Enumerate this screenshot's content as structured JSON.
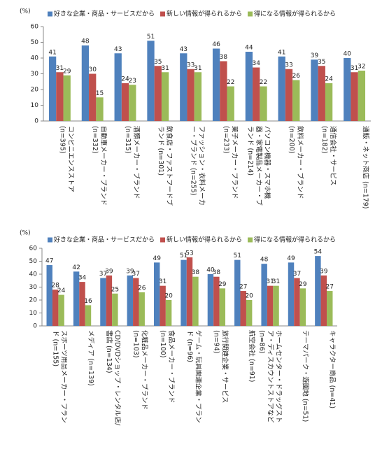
{
  "chart_data": [
    {
      "type": "bar",
      "y_label": "(%)",
      "categories": [
        "コンビニエンスストア (n=395)",
        "自動車メーカー・ブランド (n=332)",
        "酒類メーカー・ブランド (n=315)",
        "飲食店・ファストフードブランド (n=301)",
        "ファッション・衣料メーカー・ブランド (n=255)",
        "菓子メーカー・ブランド (n=233)",
        "パソコン機器・スマホ機器・家電製品メーカー・ブランド (n=214)",
        "飲料メーカー・ブランド (n=200)",
        "通信会社・サービス (n=182)",
        "通販・ネット商店 (n=179)"
      ],
      "series": [
        {
          "name": "好きな企業・商品・サービスだから",
          "color": "#4f81bd",
          "values": [
            41,
            48,
            43,
            51,
            43,
            46,
            44,
            41,
            39,
            40
          ]
        },
        {
          "name": "新しい情報が得られるから",
          "color": "#c0504d",
          "values": [
            31,
            30,
            24,
            35,
            33,
            38,
            34,
            33,
            35,
            31
          ]
        },
        {
          "name": "得になる情報が得られるから",
          "color": "#9bbb59",
          "values": [
            29,
            15,
            23,
            31,
            31,
            22,
            22,
            26,
            24,
            32
          ]
        }
      ],
      "ylim": [
        0,
        60
      ],
      "yticks": [
        0,
        10,
        20,
        30,
        40,
        50,
        60
      ],
      "grid": false,
      "legend": "top"
    },
    {
      "type": "bar",
      "y_label": "(%)",
      "categories": [
        "スポーツ用品メーカー・ブランド (n=155)",
        "メディア (n=139)",
        "CD/DVDショップ・レンタル店/書店 (n=134)",
        "化粧品メーカー・ブランド (n=103)",
        "食品メーカー・ブランド (n=100)",
        "ゲーム・玩具関連企業・ブランド (n=96)",
        "旅行関連企業・サービス (n=94)",
        "航空会社 (n=91)",
        "ホームセンター・ドラッグストア・ディスカウントストアなど (n=86)",
        "テーマパーク・遊園地 (n=51)",
        "キャラクター商品 (n=41)"
      ],
      "series": [
        {
          "name": "好きな企業・商品・サービスだから",
          "color": "#4f81bd",
          "values": [
            47,
            42,
            37,
            39,
            49,
            51,
            40,
            51,
            48,
            49,
            54
          ]
        },
        {
          "name": "新しい情報が得られるから",
          "color": "#c0504d",
          "values": [
            28,
            34,
            39,
            37,
            31,
            53,
            38,
            27,
            31,
            37,
            39
          ]
        },
        {
          "name": "得になる情報が得られるから",
          "color": "#9bbb59",
          "values": [
            24,
            16,
            25,
            26,
            20,
            38,
            29,
            20,
            31,
            29,
            27
          ]
        }
      ],
      "ylim": [
        0,
        60
      ],
      "yticks": [
        0,
        10,
        20,
        30,
        40,
        50,
        60
      ],
      "grid": false,
      "legend": "top"
    }
  ]
}
